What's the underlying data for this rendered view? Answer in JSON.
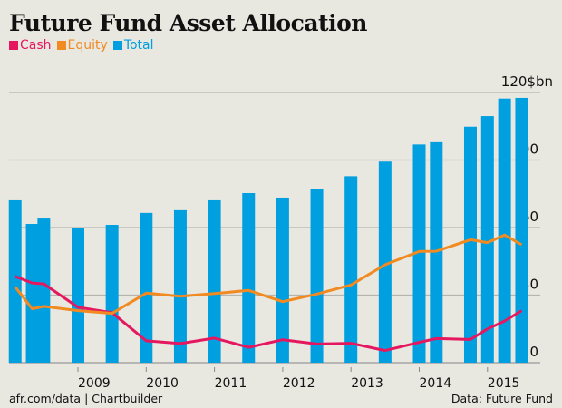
{
  "chart_data": {
    "type": "bar+line",
    "title": "Future Fund Asset Allocation",
    "unit_label": "120$bn",
    "ylim": [
      0,
      120
    ],
    "yticks": [
      0,
      30,
      60,
      90
    ],
    "xticks": [
      2009,
      2010,
      2011,
      2012,
      2013,
      2014,
      2015
    ],
    "grid": true,
    "legend": "top-left",
    "x": [
      2008.08,
      2008.33,
      2008.5,
      2009.0,
      2009.5,
      2010.0,
      2010.5,
      2011.0,
      2011.5,
      2012.0,
      2012.5,
      2013.0,
      2013.5,
      2014.0,
      2014.25,
      2014.75,
      2015.0,
      2015.25,
      2015.5
    ],
    "series": [
      {
        "name": "Cash",
        "type": "line",
        "color": "#e5185f",
        "values": [
          38.3,
          35.4,
          35.0,
          24.6,
          22.2,
          9.7,
          8.5,
          10.9,
          6.8,
          10.2,
          8.3,
          8.6,
          5.4,
          9.0,
          10.7,
          10.3,
          15.0,
          18.5,
          23.1
        ]
      },
      {
        "name": "Equity",
        "type": "line",
        "color": "#f18a21",
        "values": [
          33.7,
          23.9,
          25.0,
          23.1,
          21.9,
          30.9,
          29.5,
          30.7,
          32.1,
          27.1,
          30.5,
          34.5,
          43.5,
          49.4,
          49.5,
          54.6,
          53.3,
          56.7,
          52.4
        ]
      },
      {
        "name": "Total",
        "type": "bar",
        "color": "#009fe0",
        "values": [
          72.1,
          61.6,
          64.4,
          59.6,
          61.2,
          66.5,
          67.7,
          72.1,
          75.3,
          73.3,
          77.3,
          82.8,
          89.3,
          96.9,
          97.9,
          104.8,
          109.5,
          117.3,
          117.6
        ]
      }
    ]
  },
  "footer": {
    "left": "afr.com/data | Chartbuilder",
    "right": "Data: Future Fund"
  }
}
